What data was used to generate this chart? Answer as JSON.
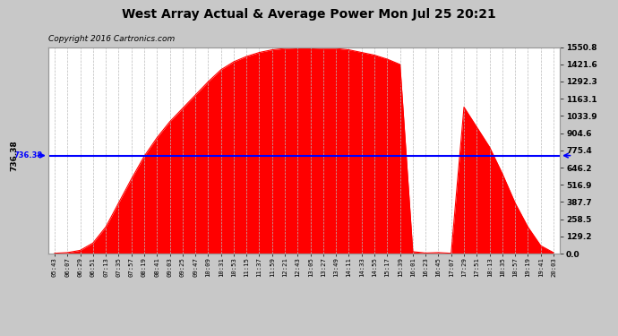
{
  "title": "West Array Actual & Average Power Mon Jul 25 20:21",
  "copyright": "Copyright 2016 Cartronics.com",
  "average_value": 736.38,
  "y_max": 1550.8,
  "y_min": 0.0,
  "y_ticks": [
    0.0,
    129.2,
    258.5,
    387.7,
    516.9,
    646.2,
    775.4,
    904.6,
    1033.9,
    1163.1,
    1292.3,
    1421.6,
    1550.8
  ],
  "background_color": "#c8c8c8",
  "plot_bg_color": "#ffffff",
  "fill_color": "#ff0000",
  "avg_line_color": "#0000ff",
  "grid_color": "#bbbbbb",
  "x_labels": [
    "05:43",
    "06:07",
    "06:29",
    "06:51",
    "07:13",
    "07:35",
    "07:57",
    "08:19",
    "08:41",
    "09:03",
    "09:25",
    "09:47",
    "10:09",
    "10:31",
    "10:53",
    "11:15",
    "11:37",
    "11:59",
    "12:21",
    "12:43",
    "13:05",
    "13:27",
    "13:49",
    "14:11",
    "14:33",
    "14:55",
    "15:17",
    "15:39",
    "16:01",
    "16:23",
    "16:45",
    "17:07",
    "17:29",
    "17:51",
    "18:13",
    "18:35",
    "18:57",
    "19:19",
    "19:41",
    "20:03"
  ],
  "solar_values": [
    3,
    8,
    25,
    80,
    200,
    380,
    560,
    730,
    870,
    990,
    1090,
    1190,
    1290,
    1380,
    1440,
    1480,
    1510,
    1530,
    1540,
    1545,
    1545,
    1540,
    1540,
    1530,
    1510,
    1490,
    1460,
    1420,
    15,
    5,
    8,
    3,
    1100,
    950,
    800,
    600,
    380,
    200,
    60,
    8
  ]
}
